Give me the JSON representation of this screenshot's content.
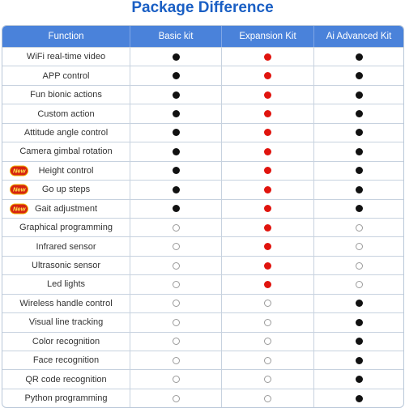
{
  "title": "Package Difference",
  "headers": {
    "function": "Function",
    "basic": "Basic kit",
    "expansion": "Expansion Kit",
    "advanced": "Ai Advanced Kit"
  },
  "badge_text": "New",
  "colors": {
    "title": "#1a5fc4",
    "header_bg": "#4a82da",
    "filled_black": "#111111",
    "filled_red": "#e0140e",
    "empty_outline": "#9a9a9a"
  },
  "legend_values": {
    "filled_black": "black filled dot",
    "filled_red": "red filled dot",
    "empty": "empty circle"
  },
  "rows": [
    {
      "label": "WiFi real-time video",
      "new": false,
      "basic": "black",
      "expansion": "red",
      "advanced": "black"
    },
    {
      "label": "APP control",
      "new": false,
      "basic": "black",
      "expansion": "red",
      "advanced": "black"
    },
    {
      "label": "Fun bionic actions",
      "new": false,
      "basic": "black",
      "expansion": "red",
      "advanced": "black"
    },
    {
      "label": "Custom action",
      "new": false,
      "basic": "black",
      "expansion": "red",
      "advanced": "black"
    },
    {
      "label": "Attitude angle control",
      "new": false,
      "basic": "black",
      "expansion": "red",
      "advanced": "black"
    },
    {
      "label": "Camera gimbal rotation",
      "new": false,
      "basic": "black",
      "expansion": "red",
      "advanced": "black"
    },
    {
      "label": "Height control",
      "new": true,
      "basic": "black",
      "expansion": "red",
      "advanced": "black"
    },
    {
      "label": "Go up steps",
      "new": true,
      "basic": "black",
      "expansion": "red",
      "advanced": "black"
    },
    {
      "label": "Gait adjustment",
      "new": true,
      "basic": "black",
      "expansion": "red",
      "advanced": "black"
    },
    {
      "label": "Graphical programming",
      "new": false,
      "basic": "empty",
      "expansion": "red",
      "advanced": "empty"
    },
    {
      "label": "Infrared sensor",
      "new": false,
      "basic": "empty",
      "expansion": "red",
      "advanced": "empty"
    },
    {
      "label": "Ultrasonic sensor",
      "new": false,
      "basic": "empty",
      "expansion": "red",
      "advanced": "empty"
    },
    {
      "label": "Led lights",
      "new": false,
      "basic": "empty",
      "expansion": "red",
      "advanced": "empty"
    },
    {
      "label": "Wireless handle control",
      "new": false,
      "basic": "empty",
      "expansion": "empty",
      "advanced": "black"
    },
    {
      "label": "Visual line tracking",
      "new": false,
      "basic": "empty",
      "expansion": "empty",
      "advanced": "black"
    },
    {
      "label": "Color recognition",
      "new": false,
      "basic": "empty",
      "expansion": "empty",
      "advanced": "black"
    },
    {
      "label": "Face recognition",
      "new": false,
      "basic": "empty",
      "expansion": "empty",
      "advanced": "black"
    },
    {
      "label": "QR code recognition",
      "new": false,
      "basic": "empty",
      "expansion": "empty",
      "advanced": "black"
    },
    {
      "label": "Python programming",
      "new": false,
      "basic": "empty",
      "expansion": "empty",
      "advanced": "black"
    }
  ]
}
